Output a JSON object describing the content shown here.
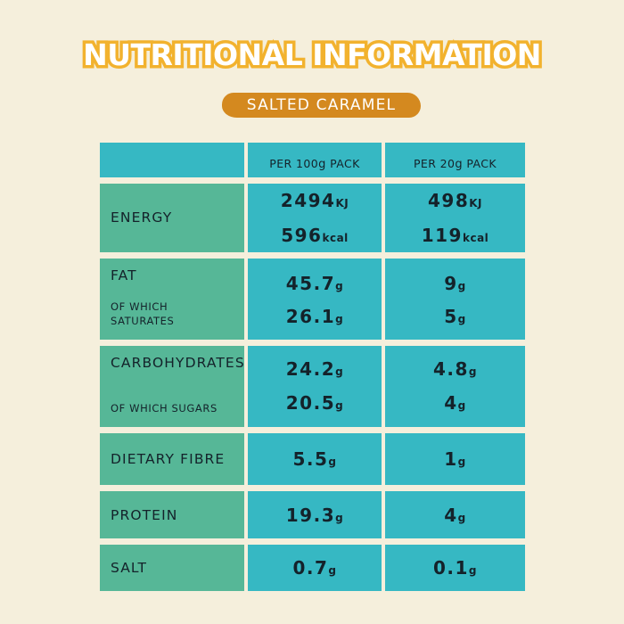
{
  "title": "NUTRITIONAL INFORMATION",
  "flavor": "SALTED CARAMEL",
  "colors": {
    "background": "#f5efdc",
    "title_outline": "#f2b22e",
    "flavor_pill": "#d4891f",
    "label_column": "#56b797",
    "value_columns": "#36b8c3"
  },
  "table": {
    "headers": {
      "per100_prefix": "PER 100",
      "per100_unit": "g",
      "per100_suffix": " PACK",
      "per20_prefix": "PER 20",
      "per20_unit": "g",
      "per20_suffix": " PACK"
    },
    "rows": {
      "energy": {
        "label": "ENERGY",
        "per100_kj": "2494",
        "kj_unit": "KJ",
        "per100_kcal": "596",
        "kcal_unit": "kcal",
        "per20_kj": "498",
        "per20_kcal": "119"
      },
      "fat": {
        "label": "FAT",
        "sub_label": "OF WHICH SATURATES",
        "per100": "45.7",
        "per100_sub": "26.1",
        "per20": "9",
        "per20_sub": "5",
        "unit": "g"
      },
      "carbs": {
        "label": "CARBOHYDRATES",
        "sub_label": "OF WHICH SUGARS",
        "per100": "24.2",
        "per100_sub": "20.5",
        "per20": "4.8",
        "per20_sub": "4",
        "unit": "g"
      },
      "fibre": {
        "label": "DIETARY FIBRE",
        "per100": "5.5",
        "per20": "1",
        "unit": "g"
      },
      "protein": {
        "label": "PROTEIN",
        "per100": "19.3",
        "per20": "4",
        "unit": "g"
      },
      "salt": {
        "label": "SALT",
        "per100": "0.7",
        "per20": "0.1",
        "unit": "g"
      }
    }
  }
}
